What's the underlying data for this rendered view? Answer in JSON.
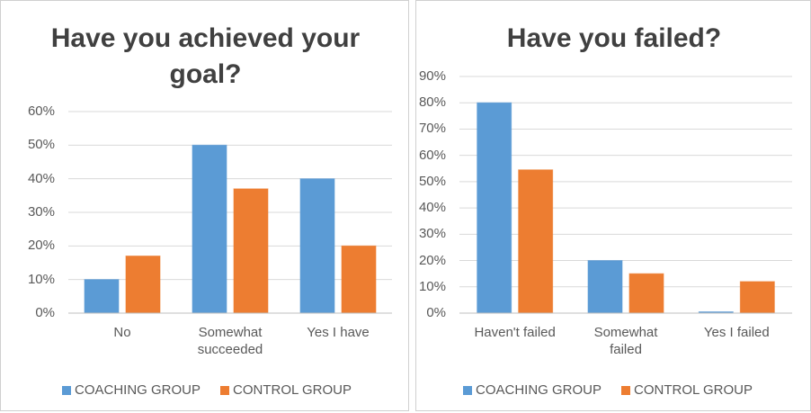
{
  "chart_data": [
    {
      "type": "bar",
      "title": "Have you achieved your goal?",
      "categories": [
        "No",
        "Somewhat succeeded",
        "Yes I have"
      ],
      "series": [
        {
          "name": "COACHING GROUP",
          "color": "#5b9bd5",
          "values": [
            10,
            50,
            40
          ]
        },
        {
          "name": "CONTROL GROUP",
          "color": "#ed7d31",
          "values": [
            17,
            37,
            20
          ]
        }
      ],
      "ylim": [
        0,
        60
      ],
      "yticks": [
        {
          "value": 0,
          "label": "0%"
        },
        {
          "value": 10,
          "label": "10%"
        },
        {
          "value": 20,
          "label": "20%"
        },
        {
          "value": 30,
          "label": "30%"
        },
        {
          "value": 40,
          "label": "40%"
        },
        {
          "value": 50,
          "label": "50%"
        },
        {
          "value": 60,
          "label": "60%"
        }
      ],
      "grid": true,
      "legend": "bottom"
    },
    {
      "type": "bar",
      "title": "Have you failed?",
      "categories": [
        "Haven't failed",
        "Somewhat failed",
        "Yes I failed"
      ],
      "series": [
        {
          "name": "COACHING GROUP",
          "color": "#5b9bd5",
          "values": [
            80,
            20,
            0.5
          ]
        },
        {
          "name": "CONTROL GROUP",
          "color": "#ed7d31",
          "values": [
            54.5,
            15,
            12
          ]
        }
      ],
      "ylim": [
        0,
        90
      ],
      "yticks": [
        {
          "value": 0,
          "label": "0%"
        },
        {
          "value": 10,
          "label": "10%"
        },
        {
          "value": 20,
          "label": "20%"
        },
        {
          "value": 30,
          "label": "30%"
        },
        {
          "value": 40,
          "label": "40%"
        },
        {
          "value": 50,
          "label": "50%"
        },
        {
          "value": 60,
          "label": "60%"
        },
        {
          "value": 70,
          "label": "70%"
        },
        {
          "value": 80,
          "label": "80%"
        },
        {
          "value": 90,
          "label": "90%"
        }
      ],
      "grid": true,
      "legend": "bottom"
    }
  ]
}
